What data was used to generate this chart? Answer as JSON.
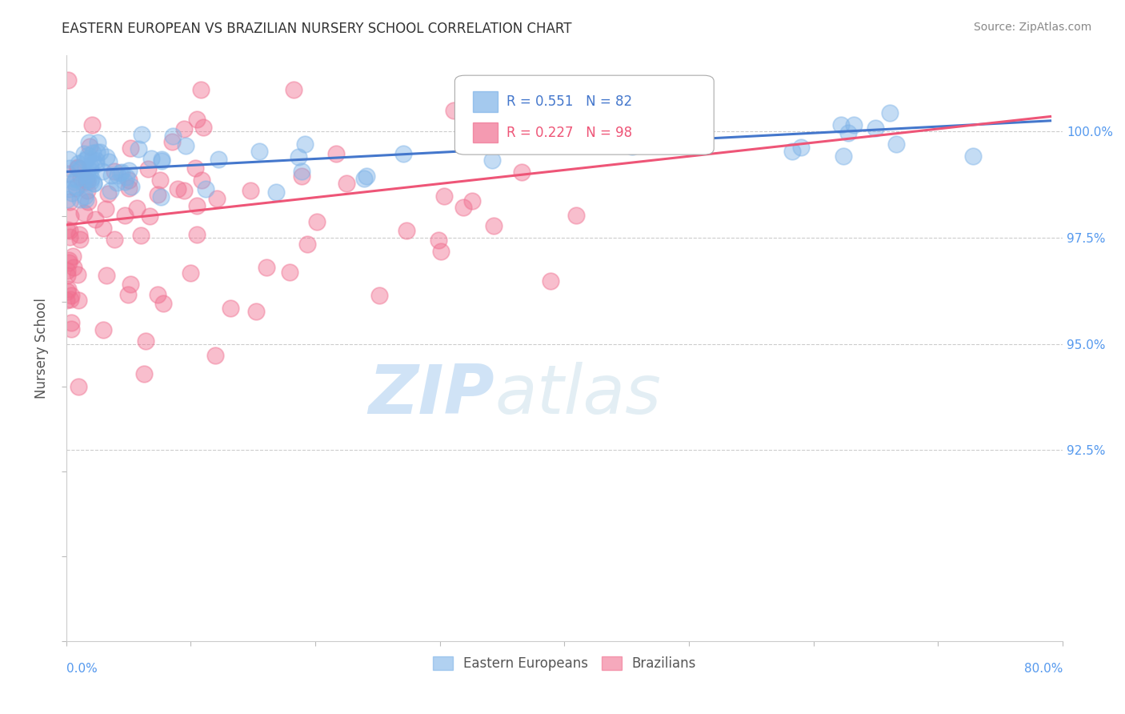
{
  "title": "EASTERN EUROPEAN VS BRAZILIAN NURSERY SCHOOL CORRELATION CHART",
  "source_text": "Source: ZipAtlas.com",
  "ylabel": "Nursery School",
  "right_yticks": [
    100.0,
    97.5,
    95.0,
    92.5
  ],
  "legend_blue": "Eastern Europeans",
  "legend_pink": "Brazilians",
  "r_blue": 0.551,
  "n_blue": 82,
  "r_pink": 0.227,
  "n_pink": 98,
  "blue_color": "#7EB3E8",
  "pink_color": "#F07090",
  "blue_line_color": "#4477CC",
  "pink_line_color": "#EE5577",
  "xlim": [
    0.0,
    80.0
  ],
  "ylim": [
    88.0,
    101.8
  ],
  "blue_trend": [
    99.05,
    100.25
  ],
  "pink_trend": [
    97.8,
    100.35
  ]
}
